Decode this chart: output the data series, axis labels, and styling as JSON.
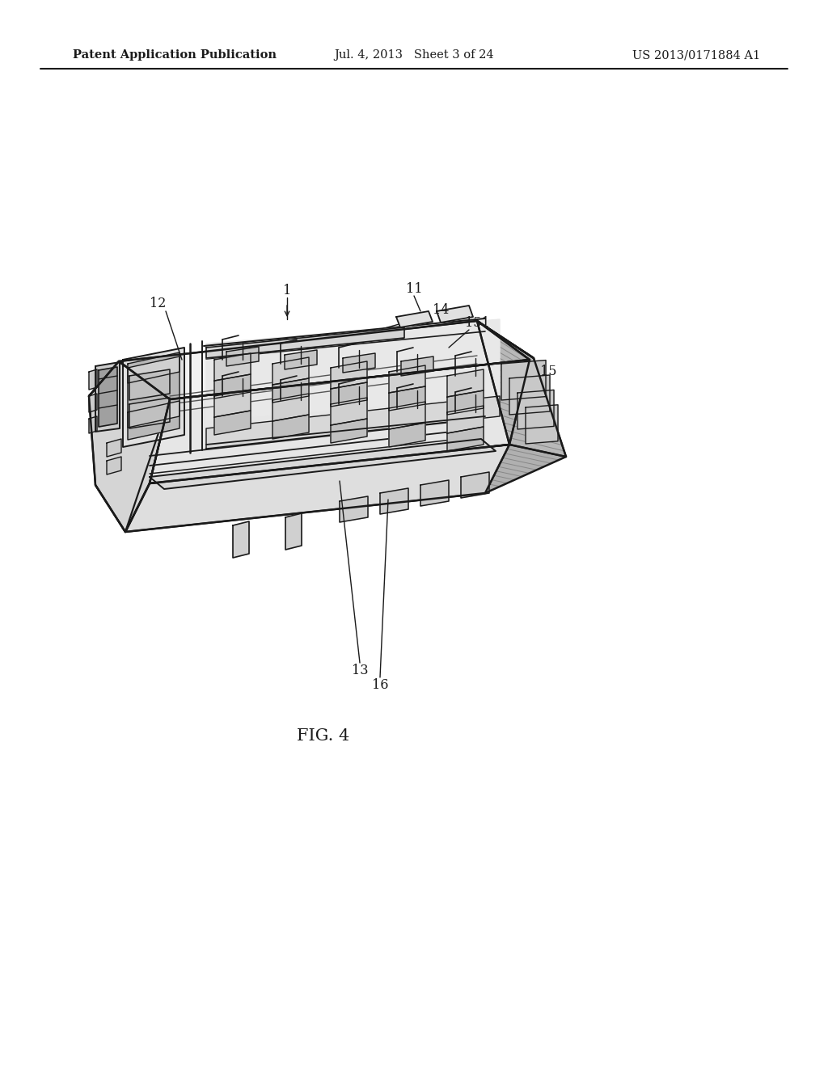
{
  "background_color": "#ffffff",
  "page_width": 10.24,
  "page_height": 13.2,
  "header_left": "Patent Application Publication",
  "header_center": "Jul. 4, 2013   Sheet 3 of 24",
  "header_right": "US 2013/0171884 A1",
  "header_fontsize": 10.5,
  "figure_label": "FIG. 4",
  "figure_label_fontsize": 15,
  "line_color": "#1a1a1a",
  "label_fontsize": 11.5
}
